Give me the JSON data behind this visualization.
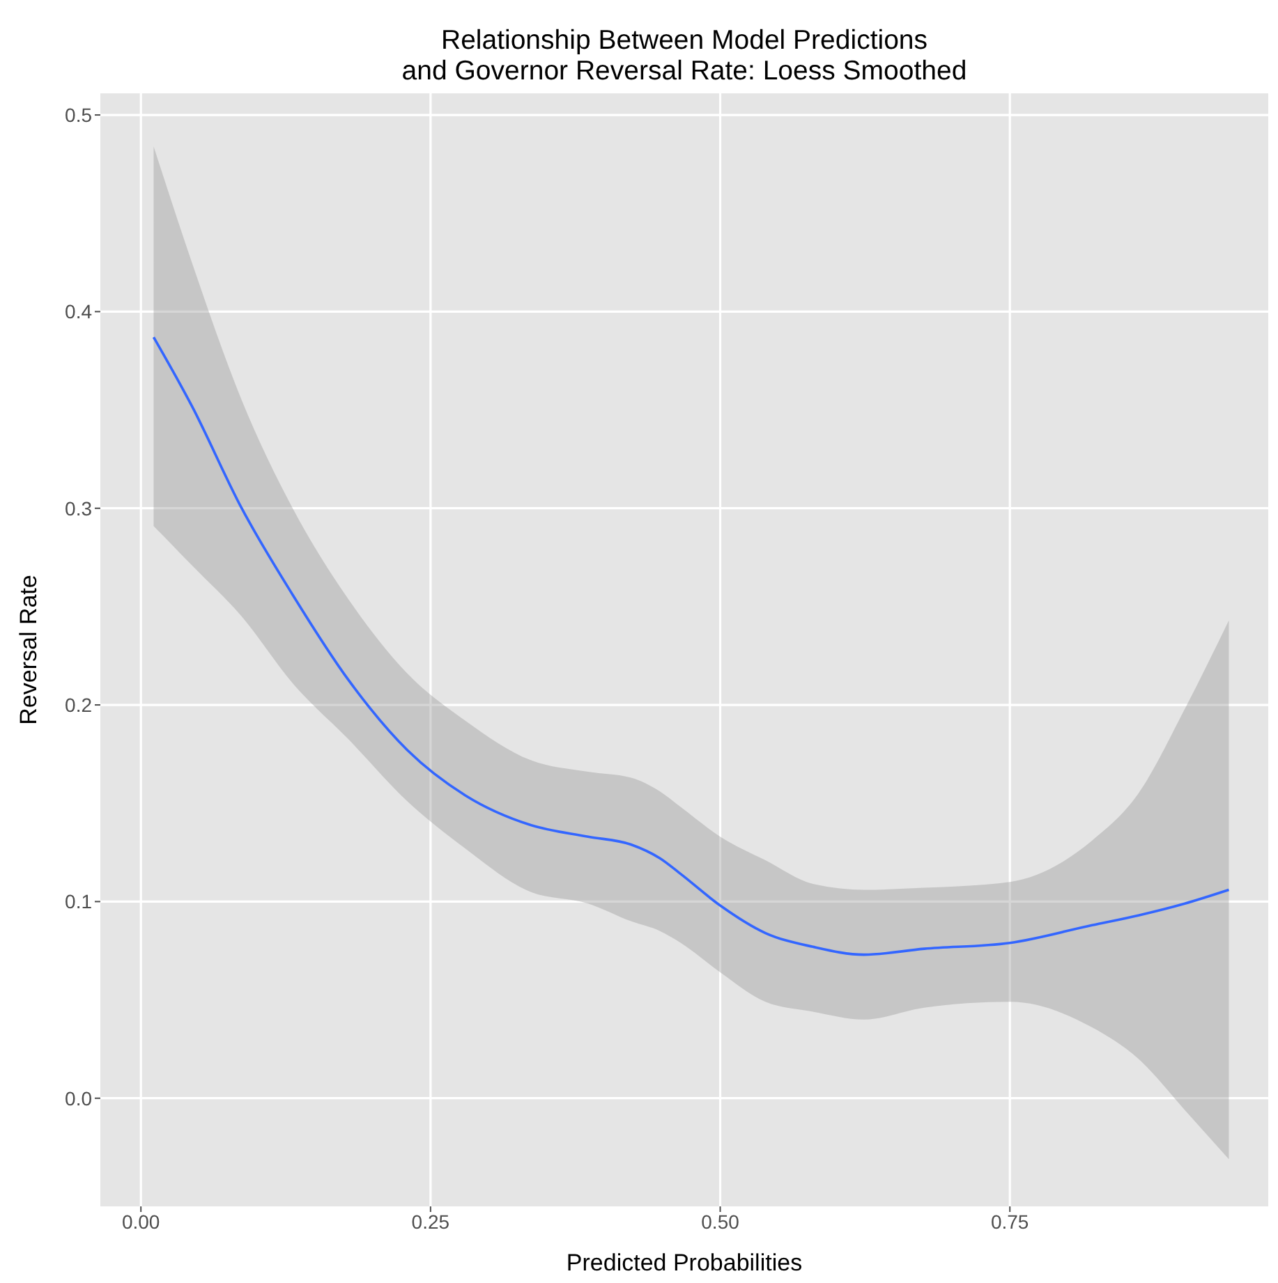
{
  "chart_data": {
    "type": "line",
    "title": "Relationship Between Model Predictions\nand Governor Reversal Rate: Loess Smoothed",
    "xlabel": "Predicted Probabilities",
    "ylabel": "Reversal Rate",
    "x": [
      0.011,
      0.044,
      0.087,
      0.131,
      0.18,
      0.23,
      0.28,
      0.336,
      0.386,
      0.423,
      0.448,
      0.466,
      0.5,
      0.539,
      0.58,
      0.624,
      0.676,
      0.75,
      0.821,
      0.861,
      0.901,
      0.939
    ],
    "series": [
      {
        "color": "#3366ff",
        "values": [
          0.387,
          0.352,
          0.3,
          0.256,
          0.212,
          0.177,
          0.154,
          0.139,
          0.133,
          0.129,
          0.122,
          0.114,
          0.098,
          0.084,
          0.077,
          0.073,
          0.076,
          0.079,
          0.088,
          0.093,
          0.099,
          0.106
        ],
        "lower": [
          0.291,
          0.271,
          0.245,
          0.211,
          0.182,
          0.151,
          0.127,
          0.105,
          0.099,
          0.09,
          0.085,
          0.079,
          0.064,
          0.049,
          0.044,
          0.04,
          0.046,
          0.049,
          0.036,
          0.02,
          -0.006,
          -0.031
        ],
        "upper": [
          0.484,
          0.425,
          0.355,
          0.3,
          0.253,
          0.216,
          0.192,
          0.172,
          0.166,
          0.163,
          0.156,
          0.148,
          0.133,
          0.121,
          0.109,
          0.106,
          0.107,
          0.11,
          0.131,
          0.155,
          0.198,
          0.243
        ]
      }
    ],
    "xlim": [
      -0.035,
      0.973
    ],
    "ylim": [
      -0.055,
      0.511
    ],
    "xticks": [
      {
        "value": 0,
        "label": "0.00"
      },
      {
        "value": 0.25,
        "label": "0.25"
      },
      {
        "value": 0.5,
        "label": "0.50"
      },
      {
        "value": 0.75,
        "label": "0.75"
      }
    ],
    "yticks": [
      {
        "value": 0,
        "label": "0.0"
      },
      {
        "value": 0.1,
        "label": "0.1"
      },
      {
        "value": 0.2,
        "label": "0.2"
      },
      {
        "value": 0.3,
        "label": "0.3"
      },
      {
        "value": 0.4,
        "label": "0.4"
      },
      {
        "value": 0.5,
        "label": "0.5"
      }
    ],
    "grid": true,
    "line_style": "solid"
  }
}
